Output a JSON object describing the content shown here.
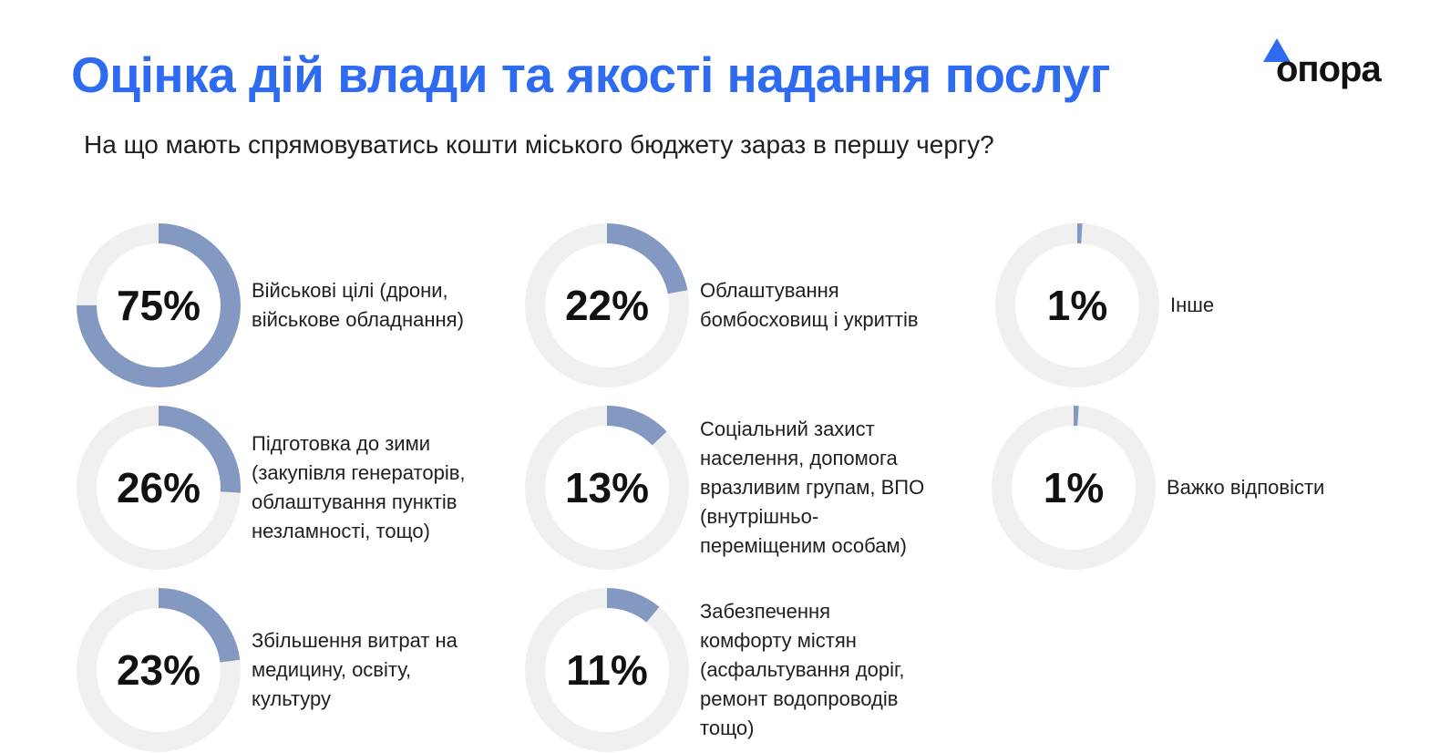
{
  "title": "Оцінка дій влади та якості надання послуг",
  "subtitle": "На що мають спрямовуватись кошти міського бюджету зараз в першу чергу?",
  "logo": {
    "text": "опора"
  },
  "colors": {
    "accent": "#2f6bf0",
    "fill": "#8399c2",
    "track": "#f0f0f0"
  },
  "chart_data": {
    "type": "donut",
    "categories": [
      "Військові цілі (дрони,\nвійськове обладнання)",
      "Підготовка до зими\n(закупівля генераторів,\nоблаштування пунктів\nнезламності, тощо)",
      "Збільшення витрат на\nмедицину, освіту,\nкультуру",
      "Облаштування\nбомбосховищ і укриттів",
      "Соціальний захист\nнаселення, допомога\nвразливим групам, ВПО\n(внутрішньо-\nпереміщеним особам)",
      "Забезпечення\nкомфорту містян\n(асфальтування доріг,\nремонт водопроводів\nтощо)",
      "Інше",
      "Важко відповісти"
    ],
    "values": [
      75,
      26,
      23,
      22,
      13,
      11,
      1,
      1
    ],
    "labels": [
      "75%",
      "26%",
      "23%",
      "22%",
      "13%",
      "11%",
      "1%",
      "1%"
    ],
    "unit": "%",
    "ylim": [
      0,
      100
    ]
  }
}
